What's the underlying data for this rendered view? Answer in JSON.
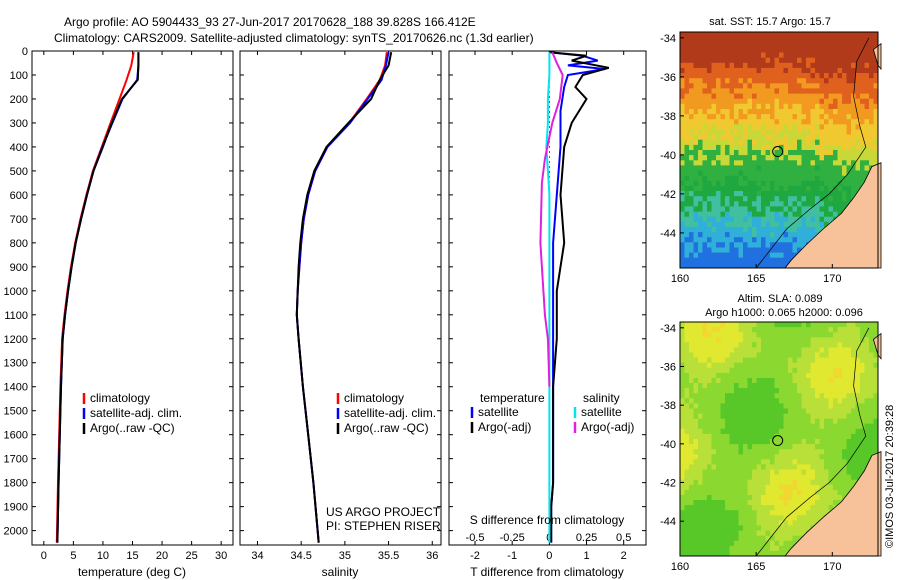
{
  "header": {
    "line1": "Argo profile: AO 5904433_93 27-Jun-2017 20170628_188 39.828S 166.412E",
    "line2": "Climatology: CARS2009. Satellite-adjusted climatology: synTS_20170626.nc (1.3d earlier)"
  },
  "colors": {
    "climatology": "#ff0000",
    "satellite": "#0000ff",
    "argo": "#000000",
    "salinity_sat": "#00e5ee",
    "salinity_argo": "#e020e0",
    "land": "#f7c29a"
  },
  "chart_data": [
    {
      "type": "line",
      "id": "temperature",
      "xlabel": "temperature (deg C)",
      "xlim": [
        -2,
        32
      ],
      "xticks": [
        0,
        5,
        10,
        15,
        20,
        25,
        30
      ],
      "ylim": [
        0,
        2060
      ],
      "yticks": [
        0,
        100,
        200,
        300,
        400,
        500,
        600,
        700,
        800,
        900,
        1000,
        1100,
        1200,
        1300,
        1400,
        1500,
        1600,
        1700,
        1800,
        1900,
        2000
      ],
      "legend": [
        "climatology",
        "satellite-adj. clim.",
        "Argo(..raw -QC)"
      ],
      "series": [
        {
          "name": "climatology",
          "x": [
            15.2,
            14.8,
            14.0,
            12.8,
            11.3,
            9.8,
            8.3,
            7.2,
            6.2,
            5.3,
            4.6,
            4.0,
            3.5,
            3.1,
            2.8,
            2.6,
            2.4,
            2.2
          ],
          "y": [
            5,
            60,
            120,
            200,
            300,
            400,
            500,
            600,
            700,
            800,
            900,
            1000,
            1100,
            1200,
            1400,
            1600,
            1800,
            2050
          ]
        },
        {
          "name": "satellite-adj. clim.",
          "x": [
            16.0,
            16.0,
            15.8,
            13.3,
            11.6,
            9.9,
            8.4,
            7.3,
            6.3,
            5.4,
            4.7,
            4.1,
            3.6,
            3.2,
            2.9,
            2.7,
            2.5,
            2.3
          ],
          "y": [
            5,
            60,
            120,
            200,
            300,
            400,
            500,
            600,
            700,
            800,
            900,
            1000,
            1100,
            1200,
            1400,
            1600,
            1800,
            2050
          ]
        },
        {
          "name": "Argo(..raw -QC)",
          "x": [
            16.0,
            16.0,
            15.9,
            13.2,
            11.5,
            10.0,
            8.4,
            7.3,
            6.3,
            5.4,
            4.7,
            4.1,
            3.6,
            3.2,
            2.9,
            2.7,
            2.5,
            2.3
          ],
          "y": [
            5,
            60,
            120,
            200,
            300,
            400,
            500,
            600,
            700,
            800,
            900,
            1000,
            1100,
            1200,
            1400,
            1600,
            1800,
            2050
          ]
        }
      ]
    },
    {
      "type": "line",
      "id": "salinity",
      "xlabel": "salinity",
      "xlim": [
        33.8,
        36.1
      ],
      "xticks": [
        34,
        34.5,
        35,
        35.5,
        36
      ],
      "xticklabels": [
        "34",
        "34.5",
        "35",
        "35.5",
        "36"
      ],
      "ylim": [
        0,
        2060
      ],
      "legend": [
        "climatology",
        "satellite-adj. clim.",
        "Argo(..raw -QC)"
      ],
      "annotation": [
        "US ARGO PROJECT",
        "PI: STEPHEN RISER"
      ],
      "series": [
        {
          "name": "climatology",
          "x": [
            35.48,
            35.46,
            35.4,
            35.25,
            35.05,
            34.8,
            34.66,
            34.58,
            34.53,
            34.5,
            34.48,
            34.46,
            34.45,
            34.47,
            34.52,
            34.58,
            34.64,
            34.7
          ],
          "y": [
            5,
            60,
            120,
            200,
            300,
            400,
            500,
            600,
            700,
            800,
            900,
            1000,
            1100,
            1200,
            1400,
            1600,
            1800,
            2050
          ]
        },
        {
          "name": "satellite-adj. clim.",
          "x": [
            35.5,
            35.47,
            35.42,
            35.26,
            35.06,
            34.8,
            34.66,
            34.58,
            34.53,
            34.5,
            34.48,
            34.46,
            34.45,
            34.47,
            34.52,
            34.58,
            34.64,
            34.7
          ],
          "y": [
            5,
            60,
            120,
            200,
            300,
            400,
            500,
            600,
            700,
            800,
            900,
            1000,
            1100,
            1200,
            1400,
            1600,
            1800,
            2050
          ]
        },
        {
          "name": "Argo(..raw -QC)",
          "x": [
            35.53,
            35.5,
            35.4,
            35.3,
            35.04,
            34.79,
            34.65,
            34.57,
            34.52,
            34.49,
            34.47,
            34.46,
            34.45,
            34.47,
            34.52,
            34.58,
            34.64,
            34.7
          ],
          "y": [
            5,
            60,
            120,
            200,
            300,
            400,
            500,
            600,
            700,
            800,
            900,
            1000,
            1100,
            1200,
            1400,
            1600,
            1800,
            2050
          ]
        }
      ]
    },
    {
      "type": "line",
      "id": "difference",
      "xlabel": "T difference from climatology",
      "xlabel_top": "S difference from climatology",
      "xlim": [
        -2.7,
        2.6
      ],
      "xticks": [
        -2,
        -1,
        0,
        1,
        2
      ],
      "xticklabels": [
        "-2",
        "-1",
        "0",
        "1",
        "2"
      ],
      "sticks": [
        -0.5,
        -0.25,
        0,
        0.25,
        0.5
      ],
      "sticklabels": [
        "-0.5",
        "-0.25",
        "0",
        "0.25",
        "0.5"
      ],
      "ylim": [
        0,
        2060
      ],
      "legend_t": {
        "title": "temperature",
        "items": [
          "satellite",
          "Argo(-adj)"
        ]
      },
      "legend_s": {
        "title": "salinity",
        "items": [
          "satellite",
          "Argo(-adj)"
        ]
      },
      "series": [
        {
          "name": "T satellite",
          "x": [
            0.0,
            0.9,
            1.3,
            0.5,
            1.5,
            0.5,
            0.4,
            0.3,
            0.3,
            0.2,
            0.1,
            0.1,
            0.1,
            0.1,
            0.1,
            0.1,
            0.05,
            0.05
          ],
          "y": [
            5,
            20,
            40,
            60,
            75,
            100,
            150,
            250,
            400,
            600,
            800,
            1000,
            1200,
            1400,
            1600,
            1800,
            1900,
            2050
          ]
        },
        {
          "name": "T Argo(-adj)",
          "x": [
            0.0,
            1.0,
            0.6,
            1.6,
            0.9,
            0.7,
            1.0,
            0.6,
            0.4,
            0.3,
            0.4,
            0.2,
            0.2,
            0.1,
            0.1,
            0.1,
            0.05,
            0.05
          ],
          "y": [
            5,
            20,
            40,
            70,
            100,
            150,
            200,
            300,
            400,
            600,
            800,
            1000,
            1200,
            1400,
            1600,
            1800,
            1900,
            2050
          ]
        },
        {
          "name": "S satellite",
          "x": [
            0.0,
            0.0,
            -0.01,
            -0.01,
            -0.02,
            0.0,
            0.0,
            0.0,
            0.0,
            0.0,
            0.0,
            0.0
          ],
          "y": [
            5,
            100,
            200,
            300,
            400,
            600,
            800,
            1000,
            1200,
            1400,
            1800,
            2050
          ]
        },
        {
          "name": "S Argo(-adj)",
          "x": [
            0.02,
            0.05,
            0.09,
            0.07,
            0.02,
            -0.03,
            -0.05,
            -0.06,
            -0.04,
            -0.03,
            -0.01,
            0.0
          ],
          "y": [
            5,
            50,
            100,
            200,
            300,
            450,
            550,
            800,
            1000,
            1100,
            1200,
            1400
          ]
        }
      ]
    },
    {
      "type": "heatmap",
      "id": "sst-map",
      "title": "sat. SST: 15.7 Argo: 15.7",
      "xlim": [
        160,
        173
      ],
      "ylim": [
        -45.8,
        -33.7
      ],
      "xticks": [
        160,
        165,
        170
      ],
      "yticks": [
        -34,
        -36,
        -38,
        -40,
        -42,
        -44
      ],
      "marker": {
        "lon": 166.412,
        "lat": -39.828
      }
    },
    {
      "type": "heatmap",
      "id": "sla-map",
      "title": "Altim. SLA: 0.089",
      "subtitle": "Argo h1000: 0.065 h2000: 0.096",
      "xlim": [
        160,
        173
      ],
      "ylim": [
        -45.8,
        -33.7
      ],
      "xticks": [
        160,
        165,
        170
      ],
      "yticks": [
        -34,
        -36,
        -38,
        -40,
        -42,
        -44
      ],
      "marker": {
        "lon": 166.412,
        "lat": -39.828
      }
    }
  ],
  "credit": "©IMOS 03-Jul-2017 20:39:28"
}
